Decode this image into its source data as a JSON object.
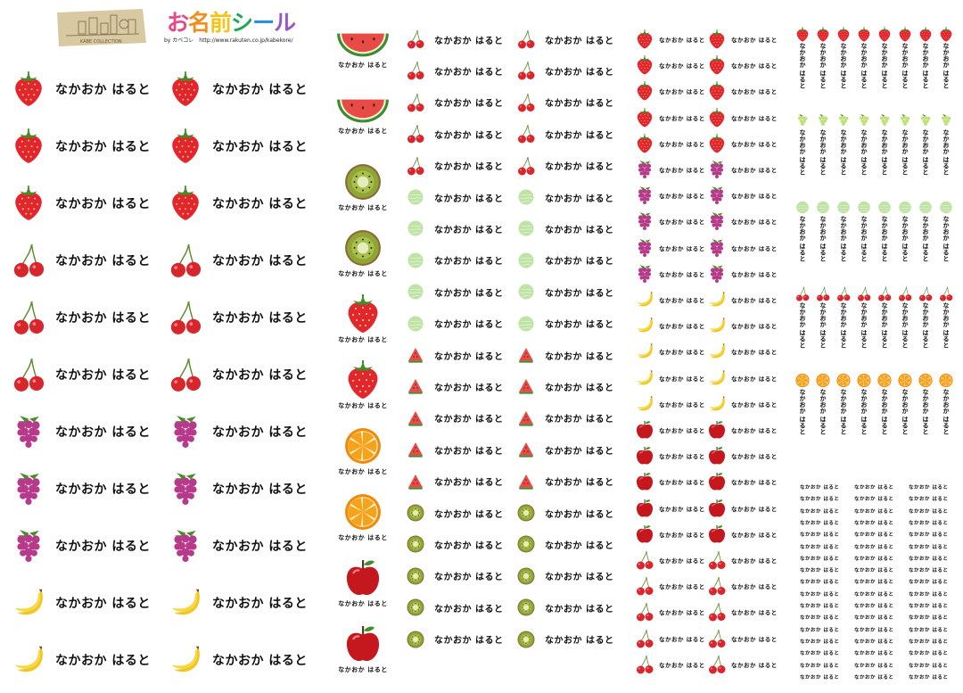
{
  "header": {
    "logo_text": "KABE COLLECTION",
    "title_chars": [
      "お",
      "名",
      "前",
      "シ",
      "ー",
      "ル"
    ],
    "title_colors": [
      "#e7468c",
      "#f28c1a",
      "#f4c317",
      "#1fa85a",
      "#2f8fd8",
      "#9a57c7"
    ],
    "subtitle": "by カベコレ　http://www.rakuten.co.jp/kabekore/"
  },
  "label_name": "なかおか はると",
  "sheets": {
    "large": [
      "strawberry",
      "strawberry",
      "strawberry",
      "cherry",
      "cherry",
      "cherry",
      "grape",
      "grape",
      "grape",
      "banana",
      "banana"
    ],
    "square": [
      "watermelon",
      "watermelon",
      "kiwi",
      "kiwi",
      "strawberry",
      "strawberry",
      "orange",
      "orange",
      "apple",
      "apple"
    ],
    "medium": [
      "cherry",
      "cherry",
      "cherry",
      "cherry",
      "cherry",
      "melon",
      "melon",
      "melon",
      "melon",
      "melon",
      "watermelon",
      "watermelon",
      "watermelon",
      "watermelon",
      "watermelon",
      "kiwi",
      "kiwi",
      "kiwi",
      "kiwi",
      "kiwi"
    ],
    "small": [
      "strawberry",
      "strawberry",
      "strawberry",
      "strawberry",
      "strawberry",
      "grape",
      "grape",
      "grape",
      "grape",
      "grape",
      "banana",
      "banana",
      "banana",
      "banana",
      "banana",
      "apple",
      "apple",
      "apple",
      "apple",
      "apple",
      "cherry",
      "cherry",
      "cherry",
      "cherry",
      "cherry"
    ],
    "vertical": [
      "strawberry",
      "muscat",
      "melon",
      "cherry",
      "orange"
    ],
    "text_only_rows": 17
  },
  "colors": {
    "strawberry": "#e3262c",
    "cherry": "#d8262c",
    "grape": "#b63a8a",
    "banana": "#f3c61f",
    "watermelon": "#e84a45",
    "kiwi": "#8fa534",
    "orange": "#f7a21b",
    "apple": "#c5171e",
    "melon": "#bfe3a4",
    "muscat": "#bfe07a"
  }
}
